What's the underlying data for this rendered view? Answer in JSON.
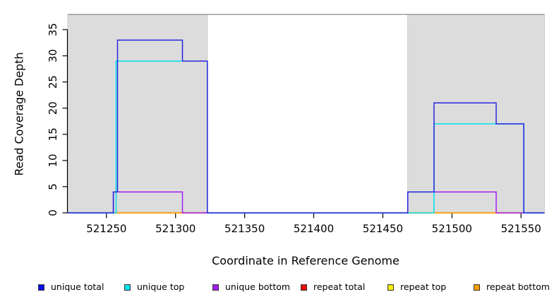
{
  "figure": {
    "ylabel": "Read Coverage Depth",
    "xlabel": "Coordinate in Reference Genome",
    "background_color": "#ffffff",
    "highlight_color": "#dcdcdc",
    "axis_color": "#000000",
    "top_border_color": "#8c8c8c"
  },
  "chart_data": {
    "type": "line",
    "subtype": "step-coverage",
    "title": "",
    "xlabel": "Coordinate in Reference Genome",
    "ylabel": "Read Coverage Depth",
    "xlim": [
      521222,
      521567
    ],
    "ylim": [
      0,
      37.9
    ],
    "xticks": [
      521250,
      521300,
      521350,
      521400,
      521450,
      521500,
      521550
    ],
    "yticks": [
      0,
      5,
      10,
      15,
      20,
      25,
      30,
      35
    ],
    "grid": false,
    "legend_position": "bottom",
    "highlight_regions": [
      {
        "x_start": 521222,
        "x_end": 521323,
        "color": "#dcdcdc"
      },
      {
        "x_start": 521468,
        "x_end": 521567,
        "color": "#dcdcdc"
      }
    ],
    "series_note": "steps = [coordinate, coverage value holding from that coordinate until the next breakpoint]; series listed in draw order (first drawn at bottom)",
    "series": [
      {
        "name": "repeat total",
        "color": "#ee2233",
        "steps": [
          [
            521222,
            0
          ]
        ]
      },
      {
        "name": "repeat top",
        "color": "#f2e40a",
        "steps": [
          [
            521222,
            0
          ]
        ]
      },
      {
        "name": "repeat bottom",
        "color": "#ff9e00",
        "steps": [
          [
            521222,
            0
          ]
        ]
      },
      {
        "name": "unique bottom",
        "color": "#a020f0",
        "steps": [
          [
            521222,
            0
          ],
          [
            521255,
            4
          ],
          [
            521305,
            0
          ],
          [
            521468,
            4
          ],
          [
            521532,
            0
          ]
        ]
      },
      {
        "name": "unique top",
        "color": "#00dfe8",
        "steps": [
          [
            521222,
            0
          ],
          [
            521257,
            29
          ],
          [
            521323,
            0
          ],
          [
            521487,
            17
          ],
          [
            521552,
            0
          ]
        ]
      },
      {
        "name": "unique total",
        "color": "#2626e0",
        "steps": [
          [
            521222,
            0
          ],
          [
            521255,
            4
          ],
          [
            521258,
            33
          ],
          [
            521305,
            29
          ],
          [
            521323,
            0
          ],
          [
            521468,
            4
          ],
          [
            521487,
            21
          ],
          [
            521532,
            17
          ],
          [
            521552,
            0
          ]
        ]
      }
    ]
  },
  "legend": {
    "items": [
      {
        "label": "unique total",
        "color": "#0b0bee"
      },
      {
        "label": "unique top",
        "color": "#06e3ee"
      },
      {
        "label": "unique bottom",
        "color": "#a020f0"
      },
      {
        "label": "repeat total",
        "color": "#f00a0a"
      },
      {
        "label": "repeat top",
        "color": "#f5ef0c"
      },
      {
        "label": "repeat bottom",
        "color": "#ff9e00"
      }
    ]
  }
}
